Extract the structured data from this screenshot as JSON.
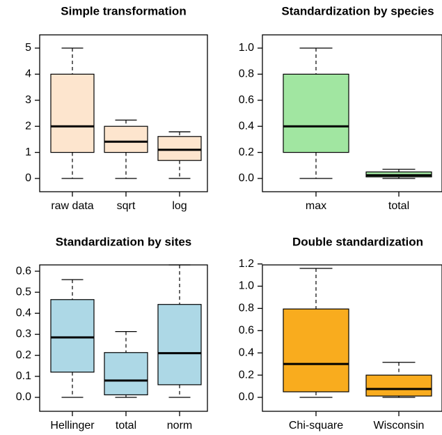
{
  "chart_data": [
    {
      "type": "boxplot",
      "title": "Simple transformation",
      "ylim": [
        0,
        5
      ],
      "yticks": [
        "0",
        "1",
        "2",
        "3",
        "4",
        "5"
      ],
      "ytick_values": [
        0,
        1,
        2,
        3,
        4,
        5
      ],
      "color": "#FDE5CE",
      "categories": [
        "raw data",
        "sqrt",
        "log"
      ],
      "boxes": [
        {
          "min": 0,
          "q1": 1,
          "median": 2,
          "q3": 4,
          "max": 5
        },
        {
          "min": 0,
          "q1": 1,
          "median": 1.41,
          "q3": 2,
          "max": 2.24
        },
        {
          "min": 0,
          "q1": 0.69,
          "median": 1.1,
          "q3": 1.61,
          "max": 1.79
        }
      ]
    },
    {
      "type": "boxplot",
      "title": "Standardization by species",
      "ylim": [
        0,
        1
      ],
      "yticks": [
        "0.0",
        "0.2",
        "0.4",
        "0.6",
        "0.8",
        "1.0"
      ],
      "ytick_values": [
        0,
        0.2,
        0.4,
        0.6,
        0.8,
        1.0
      ],
      "color": "#A1E6A1",
      "categories": [
        "max",
        "total"
      ],
      "boxes": [
        {
          "min": 0,
          "q1": 0.2,
          "median": 0.4,
          "q3": 0.8,
          "max": 1.0
        },
        {
          "min": 0,
          "q1": 0.012,
          "median": 0.025,
          "q3": 0.05,
          "max": 0.07
        }
      ]
    },
    {
      "type": "boxplot",
      "title": "Standardization by sites",
      "ylim": [
        0,
        0.63
      ],
      "yticks": [
        "0.0",
        "0.1",
        "0.2",
        "0.3",
        "0.4",
        "0.5",
        "0.6"
      ],
      "ytick_values": [
        0,
        0.1,
        0.2,
        0.3,
        0.4,
        0.5,
        0.6
      ],
      "color": "#ADD8E6",
      "categories": [
        "Hellinger",
        "total",
        "norm"
      ],
      "boxes": [
        {
          "min": 0,
          "q1": 0.12,
          "median": 0.285,
          "q3": 0.465,
          "max": 0.56
        },
        {
          "min": 0,
          "q1": 0.012,
          "median": 0.08,
          "q3": 0.213,
          "max": 0.313
        },
        {
          "min": 0,
          "q1": 0.06,
          "median": 0.21,
          "q3": 0.442,
          "max": 0.63
        }
      ]
    },
    {
      "type": "boxplot",
      "title": "Double standardization",
      "ylim": [
        0,
        1.16
      ],
      "yticks": [
        "0.0",
        "0.2",
        "0.4",
        "0.6",
        "0.8",
        "1.0",
        "1.2"
      ],
      "ytick_values": [
        0,
        0.2,
        0.4,
        0.6,
        0.8,
        1.0,
        1.2
      ],
      "color": "#F9AC1E",
      "categories": [
        "Chi-square",
        "Wisconsin"
      ],
      "boxes": [
        {
          "min": 0,
          "q1": 0.05,
          "median": 0.3,
          "q3": 0.795,
          "max": 1.16
        },
        {
          "min": 0,
          "q1": 0.012,
          "median": 0.075,
          "q3": 0.2,
          "max": 0.315
        }
      ]
    }
  ]
}
